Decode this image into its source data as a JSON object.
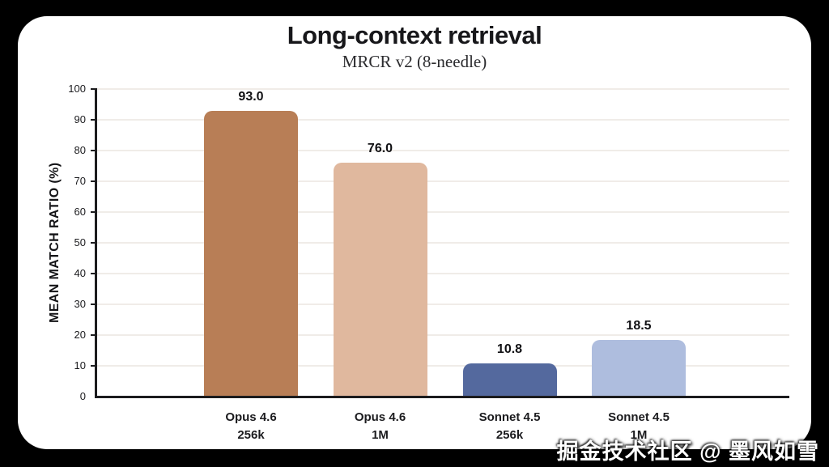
{
  "title": "Long-context retrieval",
  "subtitle": "MRCR v2 (8-needle)",
  "watermark": "掘金技术社区 @ 墨风如雪",
  "colors": {
    "background": "#000000",
    "card": "#ffffff",
    "axis": "#1c1c1e",
    "grid": "#f0ece8",
    "text": "#111114",
    "watermark": "#ffffff"
  },
  "chart_data": {
    "type": "bar",
    "title": "Long-context retrieval",
    "subtitle": "MRCR v2 (8-needle)",
    "xlabel": "",
    "ylabel": "MEAN MATCH RATIO (%)",
    "ylim": [
      0,
      100
    ],
    "ytick_step": 10,
    "grid": true,
    "legend": false,
    "categories": [
      "Opus 4.6\n256k",
      "Opus 4.6\n1M",
      "Sonnet 4.5\n256k",
      "Sonnet 4.5\n1M"
    ],
    "values": [
      93.0,
      76.0,
      10.8,
      18.5
    ],
    "data_labels": [
      "93.0",
      "76.0",
      "10.8",
      "18.5"
    ],
    "bar_colors": [
      "#b87e56",
      "#e0b89e",
      "#54699e",
      "#aebdde"
    ]
  }
}
